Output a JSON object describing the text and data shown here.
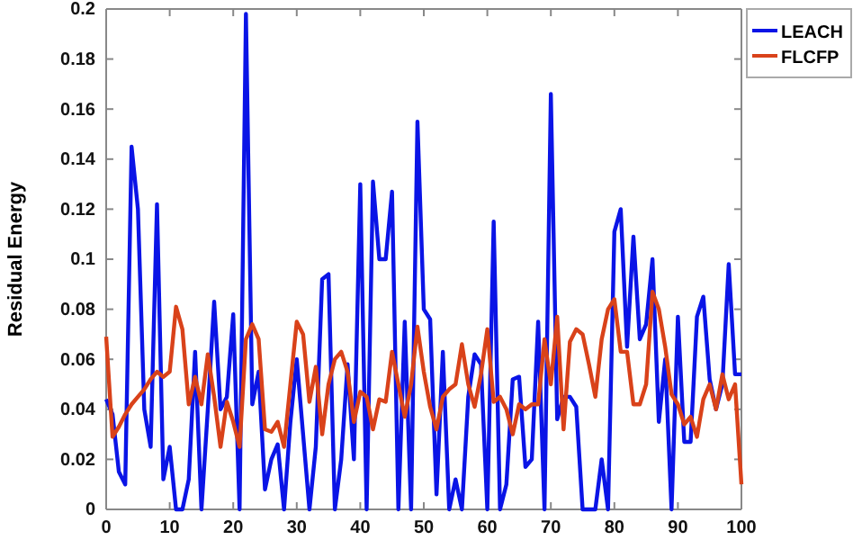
{
  "chart_data": {
    "type": "line",
    "ylabel": "Residual Energy",
    "x": [
      0,
      1,
      2,
      3,
      4,
      5,
      6,
      7,
      8,
      9,
      10,
      11,
      12,
      13,
      14,
      15,
      16,
      17,
      18,
      19,
      20,
      21,
      22,
      23,
      24,
      25,
      26,
      27,
      28,
      29,
      30,
      31,
      32,
      33,
      34,
      35,
      36,
      37,
      38,
      39,
      40,
      41,
      42,
      43,
      44,
      45,
      46,
      47,
      48,
      49,
      50,
      51,
      52,
      53,
      54,
      55,
      56,
      57,
      58,
      59,
      60,
      61,
      62,
      63,
      64,
      65,
      66,
      67,
      68,
      69,
      70,
      71,
      72,
      73,
      74,
      75,
      76,
      77,
      78,
      79,
      80,
      81,
      82,
      83,
      84,
      85,
      86,
      87,
      88,
      89,
      90,
      91,
      92,
      93,
      94,
      95,
      96,
      97,
      98,
      99,
      100
    ],
    "series": [
      {
        "name": "LEACH",
        "color": "#0a14e6",
        "values": [
          0.044,
          0.038,
          0.015,
          0.01,
          0.145,
          0.12,
          0.04,
          0.025,
          0.122,
          0.012,
          0.025,
          0,
          0,
          0.012,
          0.063,
          0,
          0.04,
          0.083,
          0.04,
          0.045,
          0.078,
          0,
          0.198,
          0.042,
          0.055,
          0.008,
          0.02,
          0.026,
          0,
          0.035,
          0.06,
          0.03,
          0,
          0.025,
          0.092,
          0.094,
          0,
          0.02,
          0.058,
          0.02,
          0.13,
          0,
          0.131,
          0.1,
          0.1,
          0.127,
          0,
          0.075,
          0,
          0.155,
          0.08,
          0.076,
          0.006,
          0.063,
          0,
          0.012,
          0,
          0.045,
          0.062,
          0.058,
          0,
          0.115,
          0,
          0.01,
          0.052,
          0.053,
          0.017,
          0.02,
          0.075,
          0,
          0.166,
          0.036,
          0.045,
          0.045,
          0.041,
          0,
          0,
          0,
          0.02,
          0,
          0.111,
          0.12,
          0.065,
          0.109,
          0.068,
          0.074,
          0.1,
          0.035,
          0.06,
          0,
          0.077,
          0.027,
          0.027,
          0.077,
          0.085,
          0.052,
          0.04,
          0.05,
          0.098,
          0.054,
          0.054
        ]
      },
      {
        "name": "FLCFP",
        "color": "#d9421a",
        "values": [
          0.069,
          0.029,
          0.033,
          0.038,
          0.042,
          0.045,
          0.048,
          0.052,
          0.055,
          0.053,
          0.055,
          0.081,
          0.072,
          0.042,
          0.053,
          0.042,
          0.062,
          0.045,
          0.025,
          0.043,
          0.035,
          0.025,
          0.068,
          0.074,
          0.068,
          0.032,
          0.031,
          0.035,
          0.025,
          0.05,
          0.075,
          0.07,
          0.043,
          0.057,
          0.03,
          0.05,
          0.06,
          0.063,
          0.055,
          0.035,
          0.047,
          0.045,
          0.032,
          0.044,
          0.043,
          0.063,
          0.05,
          0.037,
          0.05,
          0.073,
          0.055,
          0.041,
          0.032,
          0.045,
          0.048,
          0.05,
          0.066,
          0.05,
          0.041,
          0.054,
          0.072,
          0.043,
          0.045,
          0.04,
          0.03,
          0.042,
          0.04,
          0.042,
          0.042,
          0.068,
          0.05,
          0.077,
          0.032,
          0.067,
          0.072,
          0.07,
          0.058,
          0.045,
          0.068,
          0.08,
          0.084,
          0.063,
          0.063,
          0.042,
          0.042,
          0.05,
          0.087,
          0.08,
          0.065,
          0.046,
          0.042,
          0.034,
          0.037,
          0.029,
          0.044,
          0.05,
          0.04,
          0.054,
          0.044,
          0.05,
          0.01
        ]
      }
    ],
    "xlim": [
      0,
      100
    ],
    "xticks": [
      0,
      10,
      20,
      30,
      40,
      50,
      60,
      70,
      80,
      90,
      100
    ],
    "ylim": [
      0,
      0.2
    ],
    "yticks": [
      0,
      0.02,
      0.04,
      0.06,
      0.08,
      0.1,
      0.12,
      0.14,
      0.16,
      0.18,
      0.2
    ],
    "legend": "top right",
    "line_style": "solid"
  }
}
